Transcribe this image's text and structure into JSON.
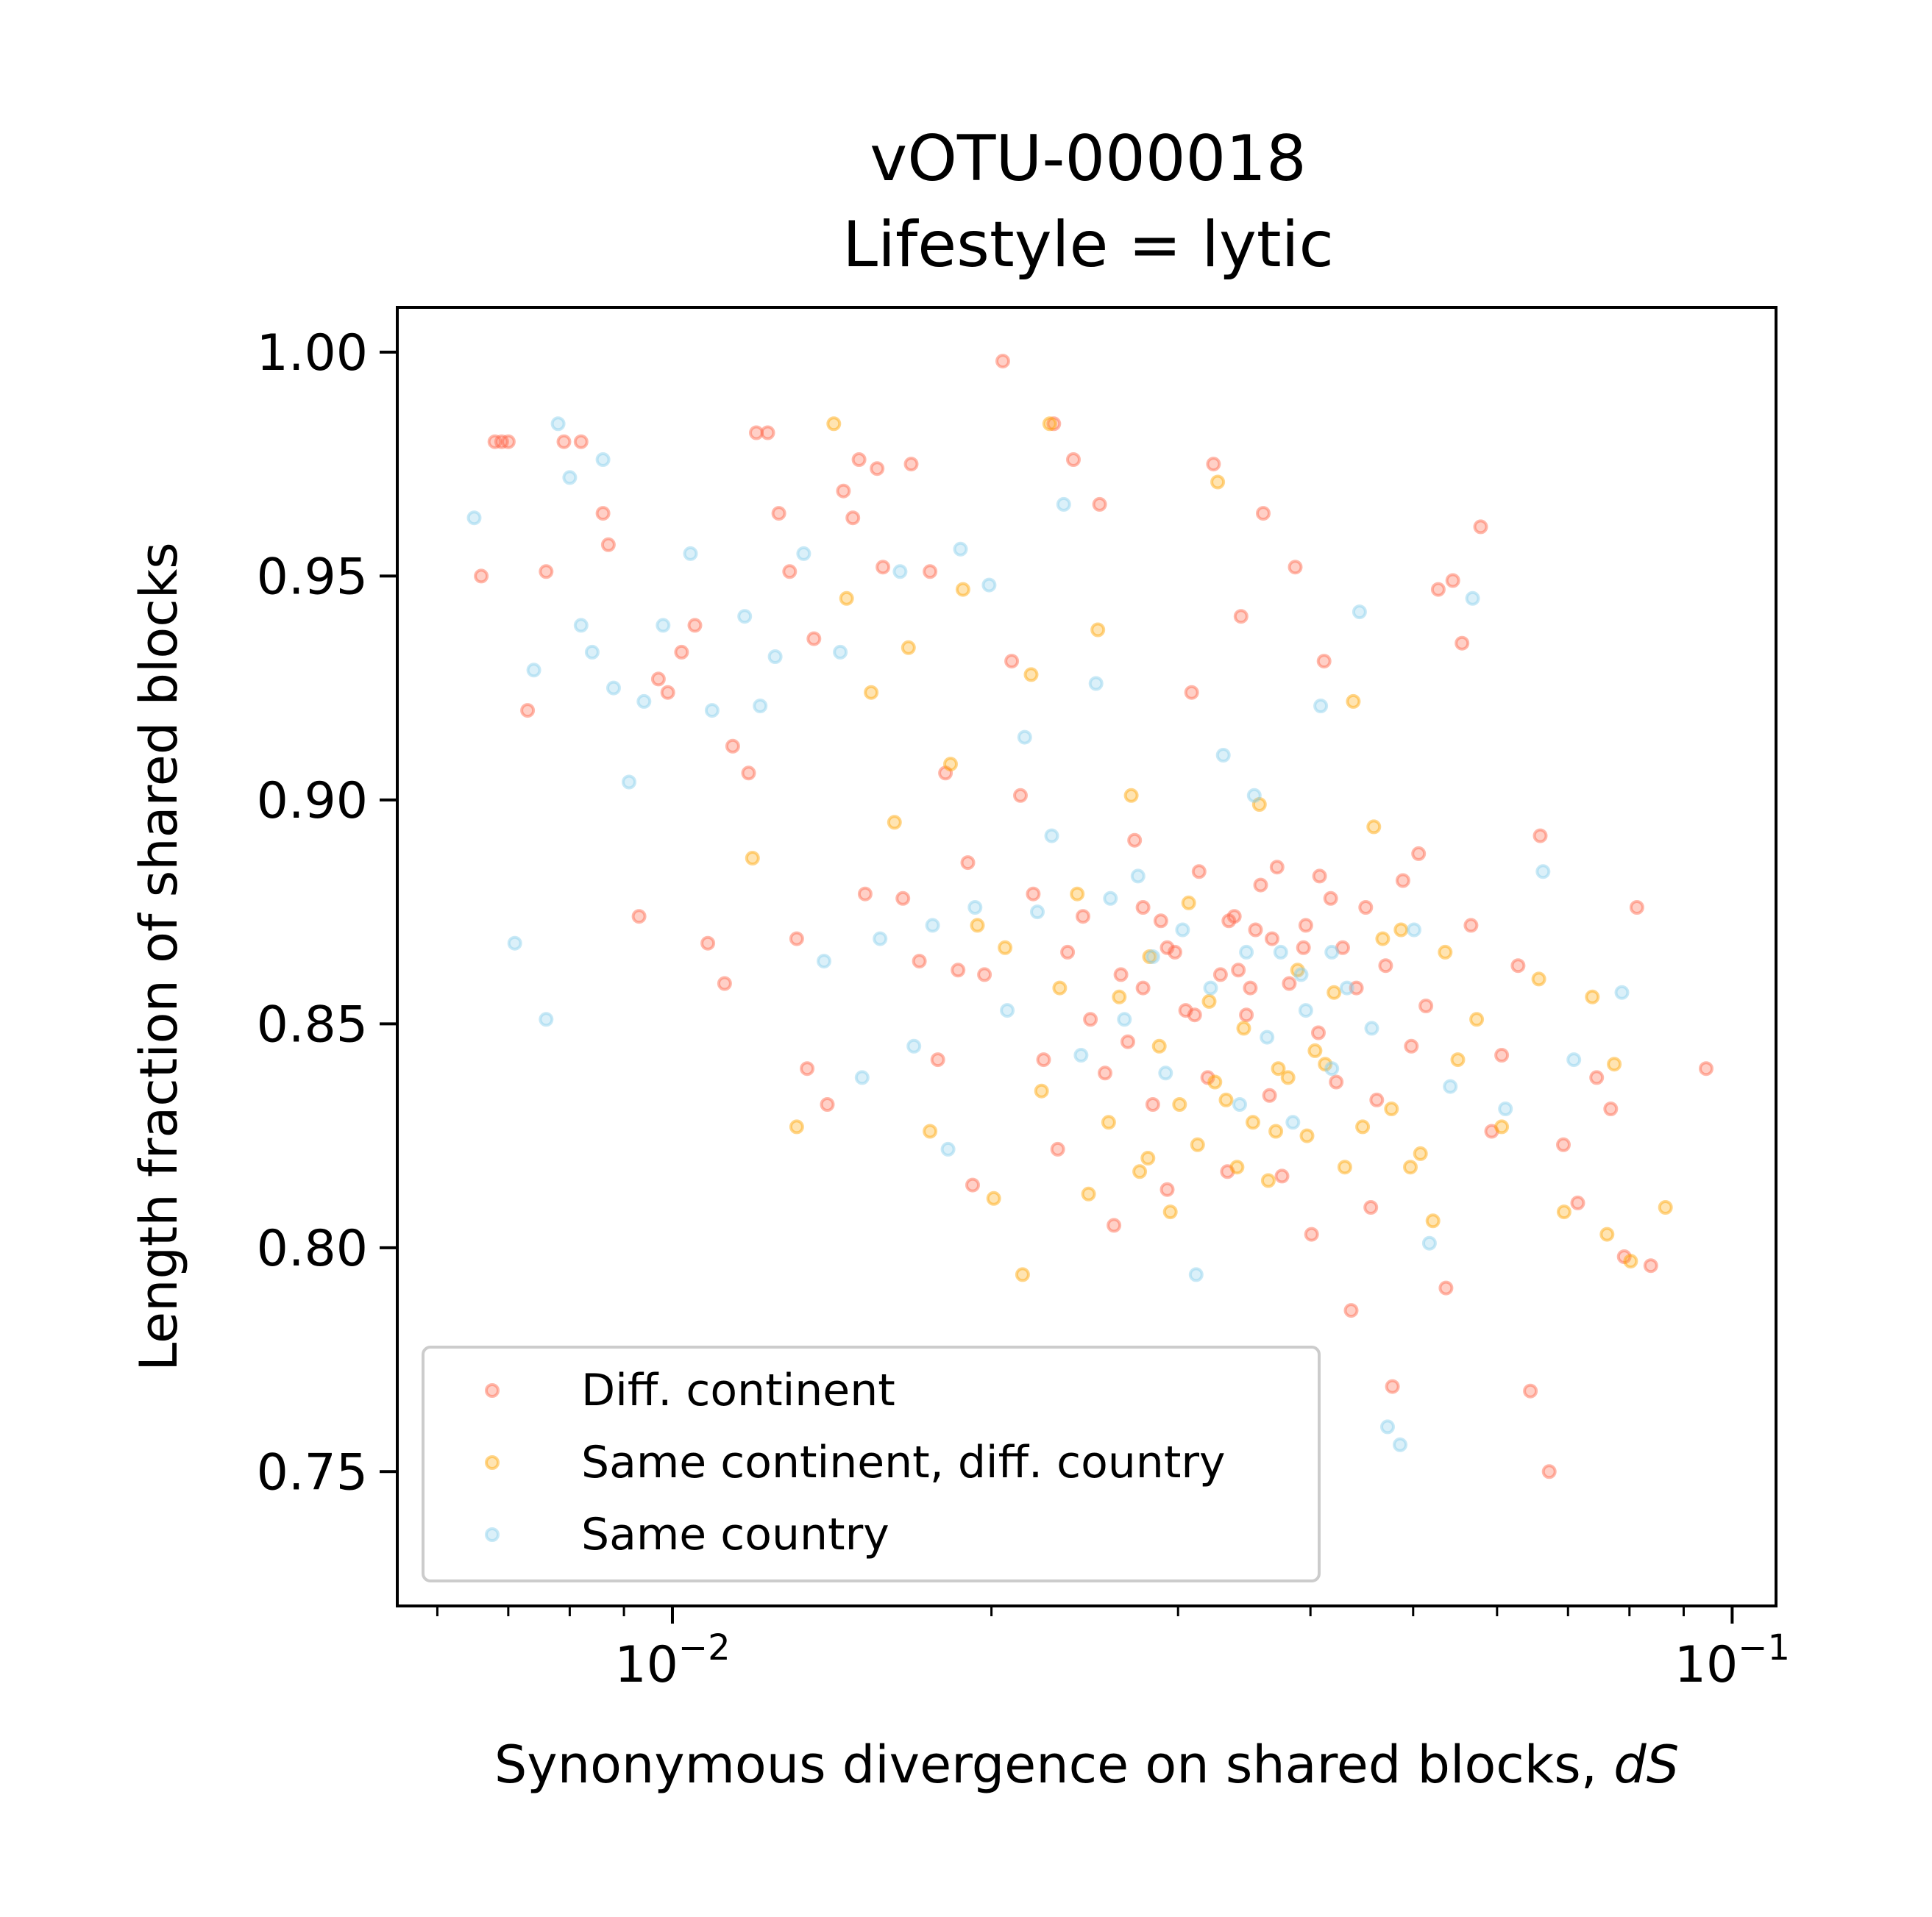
{
  "chart_data": {
    "type": "scatter",
    "title_line1": "vOTU-000018",
    "title_line2": "Lifestyle = lytic",
    "xlabel_main": "Synonymous divergence on shared blocks, ",
    "xlabel_italic": "dS",
    "ylabel": "Length fraction of shared blocks",
    "xscale": "log",
    "xlim": [
      0.0055,
      0.11
    ],
    "ylim": [
      0.72,
      1.01
    ],
    "grid": false,
    "legend_position": "lower-left",
    "x_ticks": [
      {
        "value": 0.01,
        "label_base": "10",
        "label_exp": "−2"
      },
      {
        "value": 0.1,
        "label_base": "10",
        "label_exp": "−1"
      }
    ],
    "y_ticks": [
      {
        "value": 0.75,
        "label": "0.75"
      },
      {
        "value": 0.8,
        "label": "0.80"
      },
      {
        "value": 0.85,
        "label": "0.85"
      },
      {
        "value": 0.9,
        "label": "0.90"
      },
      {
        "value": 0.95,
        "label": "0.95"
      },
      {
        "value": 1.0,
        "label": "1.00"
      }
    ],
    "series": [
      {
        "name": "Diff. continent",
        "color": "#ff6347",
        "points": [
          [
            0.0068,
            0.98
          ],
          [
            0.0069,
            0.98
          ],
          [
            0.007,
            0.98
          ],
          [
            0.0066,
            0.95
          ],
          [
            0.0073,
            0.92
          ],
          [
            0.0076,
            0.951
          ],
          [
            0.0079,
            0.98
          ],
          [
            0.0082,
            0.98
          ],
          [
            0.0086,
            0.964
          ],
          [
            0.0087,
            0.957
          ],
          [
            0.0093,
            0.874
          ],
          [
            0.0097,
            0.927
          ],
          [
            0.0099,
            0.924
          ],
          [
            0.0102,
            0.933
          ],
          [
            0.0105,
            0.939
          ],
          [
            0.0108,
            0.868
          ],
          [
            0.0112,
            0.859
          ],
          [
            0.0114,
            0.912
          ],
          [
            0.0118,
            0.906
          ],
          [
            0.012,
            0.982
          ],
          [
            0.0123,
            0.982
          ],
          [
            0.0126,
            0.964
          ],
          [
            0.0129,
            0.951
          ],
          [
            0.0131,
            0.869
          ],
          [
            0.0134,
            0.84
          ],
          [
            0.0136,
            0.936
          ],
          [
            0.014,
            0.832
          ],
          [
            0.0145,
            0.969
          ],
          [
            0.0148,
            0.963
          ],
          [
            0.015,
            0.976
          ],
          [
            0.0152,
            0.879
          ],
          [
            0.0156,
            0.974
          ],
          [
            0.0158,
            0.952
          ],
          [
            0.0165,
            0.878
          ],
          [
            0.0168,
            0.975
          ],
          [
            0.0171,
            0.864
          ],
          [
            0.0175,
            0.951
          ],
          [
            0.0178,
            0.842
          ],
          [
            0.0181,
            0.906
          ],
          [
            0.0186,
            0.862
          ],
          [
            0.019,
            0.886
          ],
          [
            0.0192,
            0.814
          ],
          [
            0.0197,
            0.861
          ],
          [
            0.0205,
            0.998
          ],
          [
            0.0209,
            0.931
          ],
          [
            0.0213,
            0.901
          ],
          [
            0.0219,
            0.879
          ],
          [
            0.0224,
            0.842
          ],
          [
            0.0229,
            0.984
          ],
          [
            0.0231,
            0.822
          ],
          [
            0.0236,
            0.866
          ],
          [
            0.0239,
            0.976
          ],
          [
            0.0244,
            0.874
          ],
          [
            0.0248,
            0.851
          ],
          [
            0.0253,
            0.966
          ],
          [
            0.0256,
            0.839
          ],
          [
            0.0261,
            0.805
          ],
          [
            0.0265,
            0.861
          ],
          [
            0.0269,
            0.846
          ],
          [
            0.0273,
            0.891
          ],
          [
            0.0278,
            0.858
          ],
          [
            0.0284,
            0.832
          ],
          [
            0.0289,
            0.873
          ],
          [
            0.0293,
            0.813
          ],
          [
            0.0298,
            0.866
          ],
          [
            0.0305,
            0.853
          ],
          [
            0.0309,
            0.924
          ],
          [
            0.0314,
            0.884
          ],
          [
            0.032,
            0.838
          ],
          [
            0.0324,
            0.975
          ],
          [
            0.0329,
            0.861
          ],
          [
            0.0334,
            0.817
          ],
          [
            0.0339,
            0.874
          ],
          [
            0.0344,
            0.941
          ],
          [
            0.0348,
            0.852
          ],
          [
            0.0355,
            0.871
          ],
          [
            0.0361,
            0.964
          ],
          [
            0.0366,
            0.834
          ],
          [
            0.0372,
            0.885
          ],
          [
            0.0376,
            0.816
          ],
          [
            0.0382,
            0.859
          ],
          [
            0.0387,
            0.952
          ],
          [
            0.0394,
            0.867
          ],
          [
            0.0401,
            0.803
          ],
          [
            0.0407,
            0.848
          ],
          [
            0.0412,
            0.931
          ],
          [
            0.0418,
            0.878
          ],
          [
            0.0423,
            0.837
          ],
          [
            0.0429,
            0.867
          ],
          [
            0.0437,
            0.786
          ],
          [
            0.0442,
            0.858
          ],
          [
            0.0451,
            0.876
          ],
          [
            0.0456,
            0.809
          ],
          [
            0.0462,
            0.833
          ],
          [
            0.0471,
            0.863
          ],
          [
            0.0478,
            0.769
          ],
          [
            0.0489,
            0.882
          ],
          [
            0.0498,
            0.845
          ],
          [
            0.0506,
            0.888
          ],
          [
            0.0514,
            0.854
          ],
          [
            0.0528,
            0.947
          ],
          [
            0.0537,
            0.791
          ],
          [
            0.0545,
            0.949
          ],
          [
            0.0556,
            0.935
          ],
          [
            0.0567,
            0.872
          ],
          [
            0.0579,
            0.961
          ],
          [
            0.0593,
            0.826
          ],
          [
            0.0606,
            0.843
          ],
          [
            0.0628,
            0.863
          ],
          [
            0.0645,
            0.768
          ],
          [
            0.0659,
            0.892
          ],
          [
            0.0672,
            0.75
          ],
          [
            0.0693,
            0.823
          ],
          [
            0.0715,
            0.81
          ],
          [
            0.0745,
            0.838
          ],
          [
            0.0768,
            0.831
          ],
          [
            0.0791,
            0.798
          ],
          [
            0.0813,
            0.876
          ],
          [
            0.0838,
            0.796
          ],
          [
            0.0945,
            0.84
          ],
          [
            0.0278,
            0.876
          ],
          [
            0.0335,
            0.873
          ],
          [
            0.0351,
            0.858
          ],
          [
            0.0368,
            0.869
          ],
          [
            0.0359,
            0.881
          ],
          [
            0.0342,
            0.862
          ],
          [
            0.0396,
            0.872
          ],
          [
            0.0408,
            0.883
          ],
          [
            0.0293,
            0.867
          ],
          [
            0.0311,
            0.852
          ]
        ]
      },
      {
        "name": "Same continent, diff. country",
        "color": "#ffa500",
        "points": [
          [
            0.0119,
            0.887
          ],
          [
            0.0131,
            0.827
          ],
          [
            0.0142,
            0.984
          ],
          [
            0.0146,
            0.945
          ],
          [
            0.0154,
            0.924
          ],
          [
            0.0162,
            0.895
          ],
          [
            0.0167,
            0.934
          ],
          [
            0.0175,
            0.826
          ],
          [
            0.0183,
            0.908
          ],
          [
            0.0188,
            0.947
          ],
          [
            0.0194,
            0.872
          ],
          [
            0.0201,
            0.811
          ],
          [
            0.0206,
            0.867
          ],
          [
            0.0214,
            0.794
          ],
          [
            0.0218,
            0.928
          ],
          [
            0.0223,
            0.835
          ],
          [
            0.0227,
            0.984
          ],
          [
            0.0232,
            0.858
          ],
          [
            0.0241,
            0.879
          ],
          [
            0.0247,
            0.812
          ],
          [
            0.0252,
            0.938
          ],
          [
            0.0258,
            0.828
          ],
          [
            0.0264,
            0.856
          ],
          [
            0.0271,
            0.901
          ],
          [
            0.0276,
            0.817
          ],
          [
            0.0282,
            0.865
          ],
          [
            0.0288,
            0.845
          ],
          [
            0.0295,
            0.808
          ],
          [
            0.0301,
            0.832
          ],
          [
            0.0307,
            0.877
          ],
          [
            0.0313,
            0.823
          ],
          [
            0.0321,
            0.855
          ],
          [
            0.0327,
            0.971
          ],
          [
            0.0333,
            0.833
          ],
          [
            0.0341,
            0.818
          ],
          [
            0.0346,
            0.849
          ],
          [
            0.0353,
            0.828
          ],
          [
            0.0358,
            0.899
          ],
          [
            0.0365,
            0.815
          ],
          [
            0.0373,
            0.84
          ],
          [
            0.0381,
            0.838
          ],
          [
            0.0389,
            0.862
          ],
          [
            0.0397,
            0.825
          ],
          [
            0.0404,
            0.844
          ],
          [
            0.0413,
            0.841
          ],
          [
            0.0421,
            0.857
          ],
          [
            0.0431,
            0.818
          ],
          [
            0.0439,
            0.922
          ],
          [
            0.0448,
            0.827
          ],
          [
            0.0459,
            0.894
          ],
          [
            0.0468,
            0.869
          ],
          [
            0.0477,
            0.831
          ],
          [
            0.0487,
            0.871
          ],
          [
            0.0497,
            0.818
          ],
          [
            0.0508,
            0.821
          ],
          [
            0.0522,
            0.806
          ],
          [
            0.0536,
            0.866
          ],
          [
            0.0551,
            0.842
          ],
          [
            0.0574,
            0.851
          ],
          [
            0.0606,
            0.827
          ],
          [
            0.0657,
            0.86
          ],
          [
            0.0694,
            0.808
          ],
          [
            0.0738,
            0.856
          ],
          [
            0.0762,
            0.803
          ],
          [
            0.0774,
            0.841
          ],
          [
            0.0802,
            0.797
          ],
          [
            0.0865,
            0.809
          ],
          [
            0.0281,
            0.82
          ],
          [
            0.0325,
            0.837
          ],
          [
            0.0371,
            0.826
          ]
        ]
      },
      {
        "name": "Same country",
        "color": "#87ceeb",
        "points": [
          [
            0.0065,
            0.963
          ],
          [
            0.0071,
            0.868
          ],
          [
            0.0074,
            0.929
          ],
          [
            0.0076,
            0.851
          ],
          [
            0.0078,
            0.984
          ],
          [
            0.008,
            0.972
          ],
          [
            0.0082,
            0.939
          ],
          [
            0.0084,
            0.933
          ],
          [
            0.0086,
            0.976
          ],
          [
            0.0088,
            0.925
          ],
          [
            0.0091,
            0.904
          ],
          [
            0.0094,
            0.922
          ],
          [
            0.0098,
            0.939
          ],
          [
            0.0104,
            0.955
          ],
          [
            0.0109,
            0.92
          ],
          [
            0.0117,
            0.941
          ],
          [
            0.0121,
            0.921
          ],
          [
            0.0125,
            0.932
          ],
          [
            0.0133,
            0.955
          ],
          [
            0.0139,
            0.864
          ],
          [
            0.0144,
            0.933
          ],
          [
            0.0151,
            0.838
          ],
          [
            0.0157,
            0.869
          ],
          [
            0.0164,
            0.951
          ],
          [
            0.0169,
            0.845
          ],
          [
            0.0176,
            0.872
          ],
          [
            0.0182,
            0.822
          ],
          [
            0.0187,
            0.956
          ],
          [
            0.0193,
            0.876
          ],
          [
            0.0199,
            0.948
          ],
          [
            0.0207,
            0.853
          ],
          [
            0.0215,
            0.914
          ],
          [
            0.0221,
            0.875
          ],
          [
            0.0228,
            0.892
          ],
          [
            0.0234,
            0.966
          ],
          [
            0.0243,
            0.843
          ],
          [
            0.0251,
            0.926
          ],
          [
            0.0259,
            0.878
          ],
          [
            0.0267,
            0.851
          ],
          [
            0.0275,
            0.883
          ],
          [
            0.0284,
            0.865
          ],
          [
            0.0292,
            0.839
          ],
          [
            0.0303,
            0.871
          ],
          [
            0.0312,
            0.794
          ],
          [
            0.0322,
            0.858
          ],
          [
            0.0331,
            0.91
          ],
          [
            0.0343,
            0.832
          ],
          [
            0.0354,
            0.901
          ],
          [
            0.0364,
            0.847
          ],
          [
            0.0375,
            0.866
          ],
          [
            0.0385,
            0.828
          ],
          [
            0.0396,
            0.853
          ],
          [
            0.0409,
            0.921
          ],
          [
            0.0419,
            0.84
          ],
          [
            0.0433,
            0.858
          ],
          [
            0.0445,
            0.942
          ],
          [
            0.0457,
            0.849
          ],
          [
            0.0473,
            0.76
          ],
          [
            0.0486,
            0.756
          ],
          [
            0.0501,
            0.871
          ],
          [
            0.0518,
            0.801
          ],
          [
            0.0542,
            0.836
          ],
          [
            0.0569,
            0.945
          ],
          [
            0.0611,
            0.831
          ],
          [
            0.0663,
            0.884
          ],
          [
            0.0709,
            0.842
          ],
          [
            0.0787,
            0.857
          ],
          [
            0.0392,
            0.861
          ],
          [
            0.0348,
            0.866
          ],
          [
            0.0419,
            0.866
          ]
        ]
      }
    ]
  }
}
